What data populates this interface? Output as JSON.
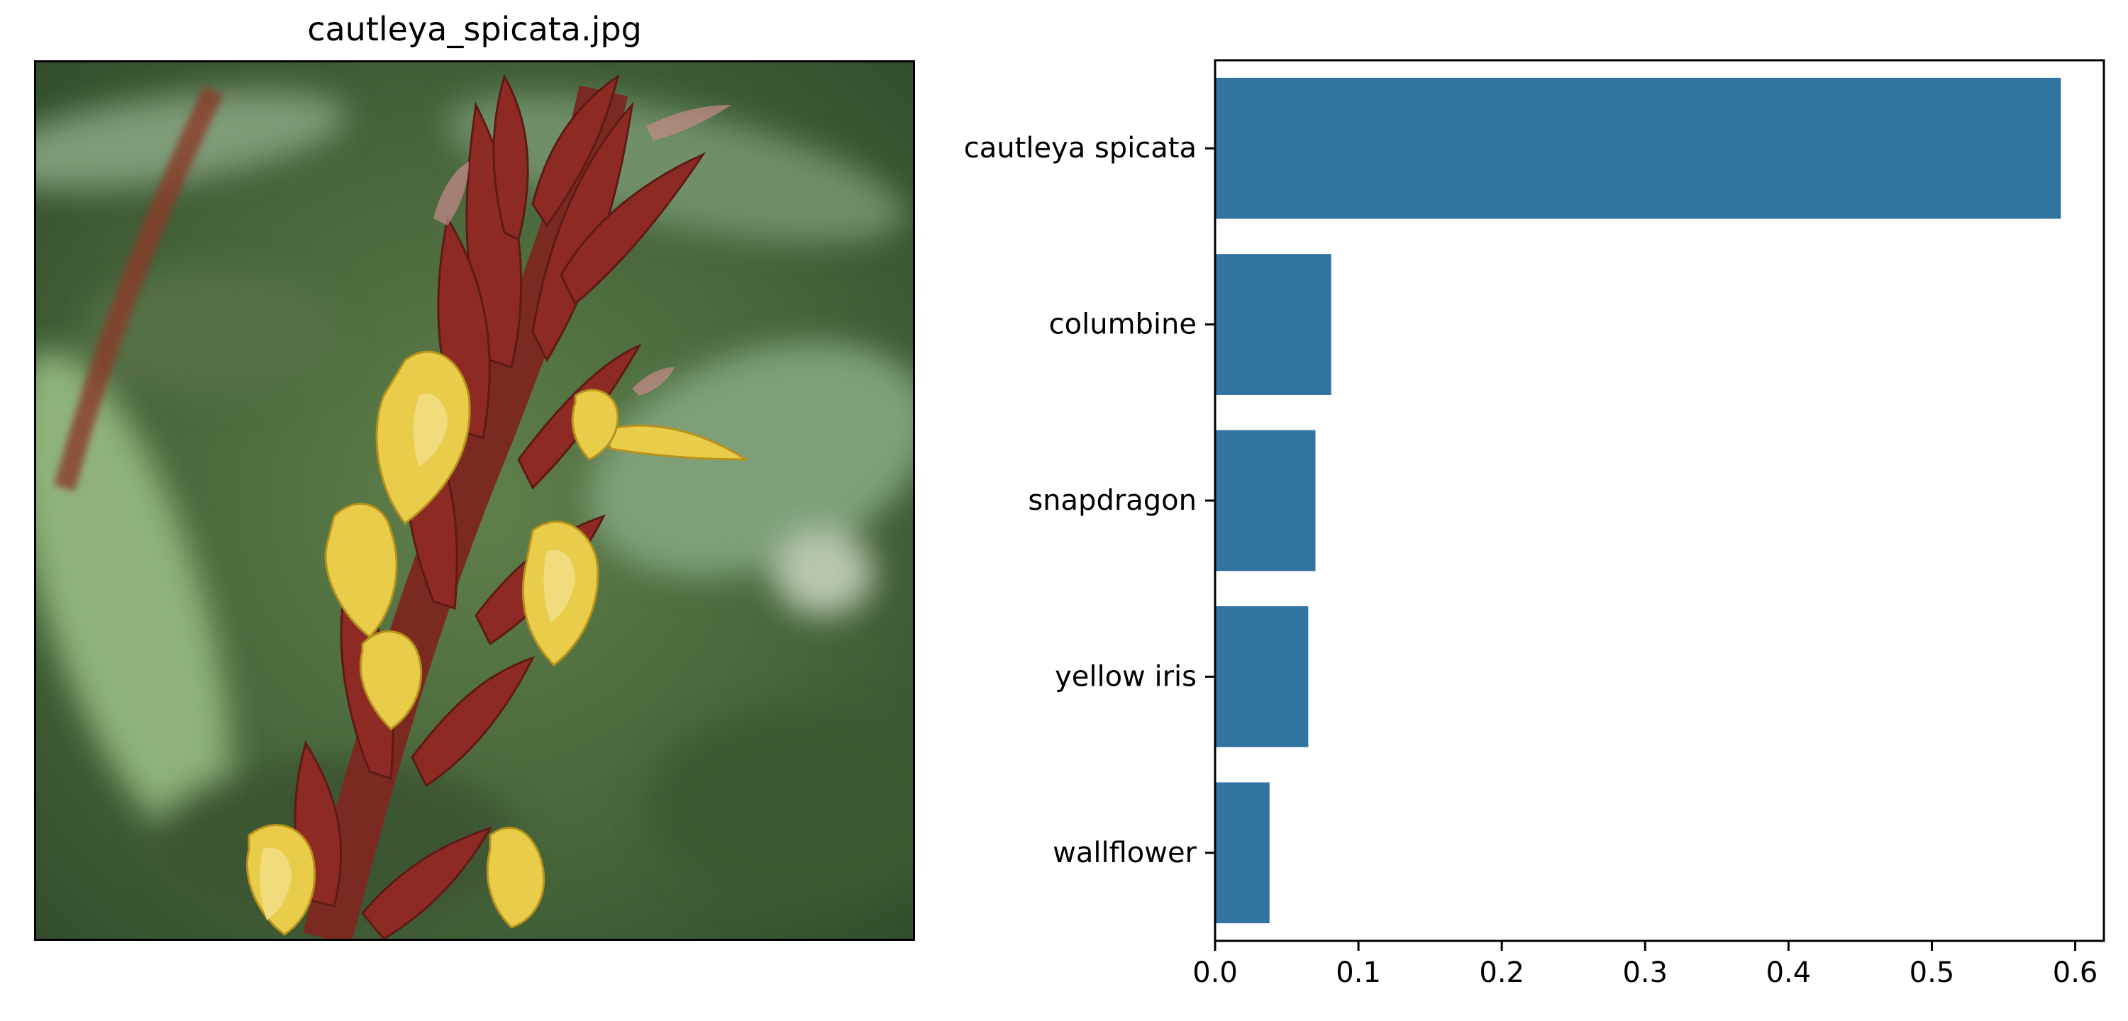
{
  "image_panel": {
    "title": "cautleya_spicata.jpg",
    "description_icon": "flower-photo"
  },
  "chart_data": {
    "type": "bar",
    "orientation": "horizontal",
    "categories": [
      "cautleya spicata",
      "columbine",
      "snapdragon",
      "yellow iris",
      "wallflower"
    ],
    "values": [
      0.59,
      0.081,
      0.07,
      0.065,
      0.038
    ],
    "xticks": [
      "0.0",
      "0.1",
      "0.2",
      "0.3",
      "0.4",
      "0.5",
      "0.6"
    ],
    "xlim": [
      0,
      0.62
    ],
    "title": "",
    "xlabel": "",
    "ylabel": "",
    "grid": false,
    "bar_color": "#3274a1"
  }
}
